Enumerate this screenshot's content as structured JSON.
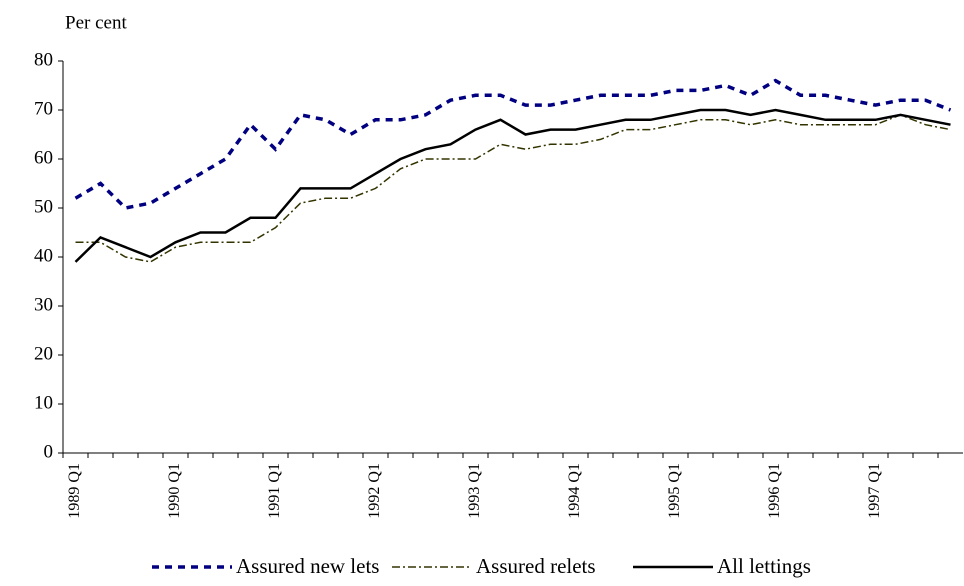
{
  "chart_data": {
    "type": "line",
    "y_label": "Per cent",
    "categories": [
      "1989 Q1",
      null,
      null,
      null,
      "1990 Q1",
      null,
      null,
      null,
      "1991 Q1",
      null,
      null,
      null,
      "1992 Q1",
      null,
      null,
      null,
      "1993 Q1",
      null,
      null,
      null,
      "1994 Q1",
      null,
      null,
      null,
      "1995 Q1",
      null,
      null,
      null,
      "1996 Q1",
      null,
      null,
      null,
      "1997 Q1",
      null,
      null,
      null
    ],
    "series": [
      {
        "name": "Assured new lets",
        "color": "#000080",
        "style": "dashed",
        "values": [
          52,
          55,
          50,
          51,
          54,
          57,
          60,
          67,
          62,
          69,
          68,
          65,
          68,
          68,
          69,
          72,
          73,
          73,
          71,
          71,
          72,
          73,
          73,
          73,
          74,
          74,
          75,
          73,
          76,
          73,
          73,
          72,
          71,
          72,
          72,
          70
        ]
      },
      {
        "name": "Assured relets",
        "color": "#333300",
        "style": "dashdot",
        "values": [
          43,
          43,
          40,
          39,
          42,
          43,
          43,
          43,
          46,
          51,
          52,
          52,
          54,
          58,
          60,
          60,
          60,
          63,
          62,
          63,
          63,
          64,
          66,
          66,
          67,
          68,
          68,
          67,
          68,
          67,
          67,
          67,
          67,
          69,
          67,
          66
        ]
      },
      {
        "name": "All lettings",
        "color": "#000000",
        "style": "solid",
        "values": [
          39,
          44,
          42,
          40,
          43,
          45,
          45,
          48,
          48,
          54,
          54,
          54,
          57,
          60,
          62,
          63,
          66,
          68,
          65,
          66,
          66,
          67,
          68,
          68,
          69,
          70,
          70,
          69,
          70,
          69,
          68,
          68,
          68,
          69,
          68,
          67
        ]
      }
    ],
    "ylim": [
      0,
      80
    ],
    "yticks": [
      0,
      10,
      20,
      30,
      40,
      50,
      60,
      70,
      80
    ],
    "grid": false
  }
}
